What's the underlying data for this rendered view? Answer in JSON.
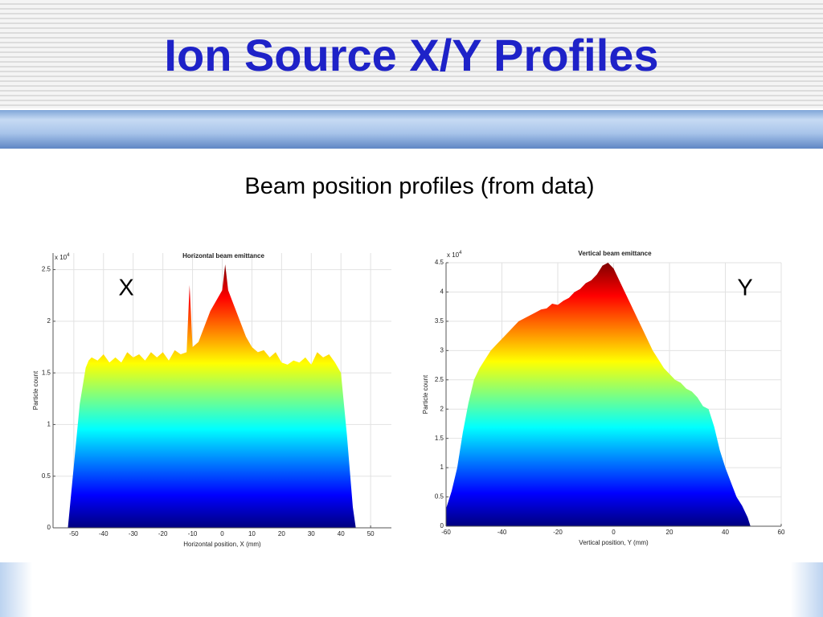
{
  "slide": {
    "title": "Ion Source X/Y Profiles",
    "subtitle": "Beam position profiles (from data)"
  },
  "chart_data": [
    {
      "type": "area",
      "title": "Horizontal beam emittance",
      "annotation": "X",
      "x_label": "Horizontal position, X (mm)",
      "y_label": "Particle count",
      "y_multiplier": {
        "base": "x 10",
        "exponent": "4"
      },
      "colormap": "jet",
      "grid": true,
      "xlim": [
        -57,
        57
      ],
      "xticks": [
        -50,
        -40,
        -30,
        -20,
        -10,
        0,
        10,
        20,
        30,
        40,
        50
      ],
      "ylim": [
        0,
        2.66
      ],
      "yticks": [
        0,
        0.5,
        1,
        1.5,
        2,
        2.5
      ],
      "x": [
        -52,
        -50,
        -48,
        -46,
        -45,
        -44,
        -42,
        -40,
        -38,
        -36,
        -34,
        -32,
        -30,
        -28,
        -26,
        -24,
        -22,
        -20,
        -18,
        -16,
        -14,
        -12,
        -11,
        -10,
        -8,
        -6,
        -4,
        -2,
        0,
        1,
        2,
        4,
        6,
        8,
        10,
        12,
        14,
        16,
        18,
        20,
        22,
        24,
        26,
        28,
        30,
        32,
        34,
        36,
        38,
        40,
        42,
        44,
        45
      ],
      "values": [
        0,
        0.6,
        1.2,
        1.55,
        1.62,
        1.65,
        1.62,
        1.68,
        1.6,
        1.65,
        1.6,
        1.7,
        1.65,
        1.68,
        1.62,
        1.7,
        1.65,
        1.7,
        1.62,
        1.72,
        1.68,
        1.7,
        2.35,
        1.75,
        1.8,
        1.95,
        2.1,
        2.2,
        2.3,
        2.55,
        2.3,
        2.15,
        2.0,
        1.85,
        1.75,
        1.7,
        1.72,
        1.65,
        1.7,
        1.6,
        1.58,
        1.62,
        1.6,
        1.65,
        1.58,
        1.7,
        1.65,
        1.68,
        1.6,
        1.5,
        0.9,
        0.2,
        0
      ]
    },
    {
      "type": "area",
      "title": "Vertical beam emittance",
      "annotation": "Y",
      "x_label": "Vertical position, Y (mm)",
      "y_label": "Particle count",
      "y_multiplier": {
        "base": "x 10",
        "exponent": "4"
      },
      "colormap": "jet",
      "grid": true,
      "xlim": [
        -60,
        60
      ],
      "xticks": [
        -60,
        -40,
        -20,
        0,
        20,
        40,
        60
      ],
      "ylim": [
        0,
        4.5
      ],
      "yticks": [
        0,
        0.5,
        1,
        1.5,
        2,
        2.5,
        3,
        3.5,
        4,
        4.5
      ],
      "x": [
        -60,
        -58,
        -56,
        -54,
        -52,
        -50,
        -48,
        -46,
        -44,
        -42,
        -40,
        -38,
        -36,
        -34,
        -32,
        -30,
        -28,
        -26,
        -24,
        -22,
        -20,
        -18,
        -16,
        -14,
        -12,
        -10,
        -8,
        -6,
        -4,
        -2,
        0,
        2,
        4,
        6,
        8,
        10,
        12,
        14,
        16,
        18,
        20,
        22,
        24,
        26,
        28,
        30,
        32,
        34,
        36,
        38,
        40,
        42,
        44,
        46,
        48,
        49
      ],
      "values": [
        0.3,
        0.6,
        1.0,
        1.6,
        2.1,
        2.5,
        2.7,
        2.85,
        3.0,
        3.1,
        3.2,
        3.3,
        3.4,
        3.5,
        3.55,
        3.6,
        3.65,
        3.7,
        3.72,
        3.8,
        3.78,
        3.85,
        3.9,
        4.0,
        4.05,
        4.15,
        4.2,
        4.3,
        4.45,
        4.5,
        4.4,
        4.2,
        4.0,
        3.8,
        3.6,
        3.4,
        3.2,
        3.0,
        2.85,
        2.7,
        2.6,
        2.5,
        2.45,
        2.35,
        2.3,
        2.2,
        2.05,
        2.0,
        1.7,
        1.3,
        1.0,
        0.75,
        0.5,
        0.35,
        0.15,
        0
      ]
    }
  ]
}
